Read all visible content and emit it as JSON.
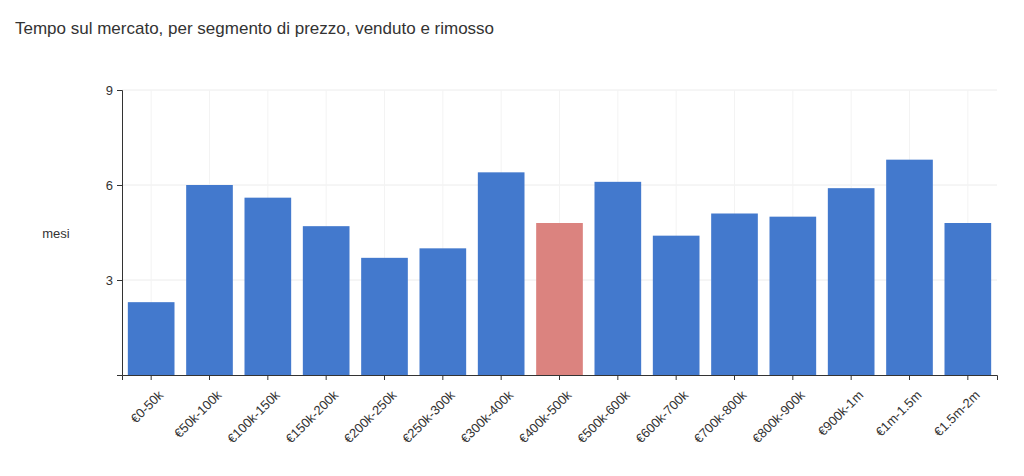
{
  "chart_data": {
    "type": "bar",
    "title": "Tempo sul mercato, per segmento di prezzo, venduto e rimosso",
    "y_label": "mesi",
    "categories": [
      "€0-50k",
      "€50k-100k",
      "€100k-150k",
      "€150k-200k",
      "€200k-250k",
      "€250k-300k",
      "€300k-400k",
      "€400k-500k",
      "€500k-600k",
      "€600k-700k",
      "€700k-800k",
      "€800k-900k",
      "€900k-1m",
      "€1m-1.5m",
      "€1.5m-2m"
    ],
    "values": [
      2.3,
      6.0,
      5.6,
      4.7,
      3.7,
      4.0,
      6.4,
      4.8,
      6.1,
      4.4,
      5.1,
      5.0,
      5.9,
      6.8,
      4.8
    ],
    "colors": [
      "#4379cd",
      "#4379cd",
      "#4379cd",
      "#4379cd",
      "#4379cd",
      "#4379cd",
      "#4379cd",
      "#db837f",
      "#4379cd",
      "#4379cd",
      "#4379cd",
      "#4379cd",
      "#4379cd",
      "#4379cd",
      "#4379cd"
    ],
    "ylim": [
      0,
      9
    ],
    "yticks": [
      3,
      6,
      9
    ],
    "grid": true
  }
}
